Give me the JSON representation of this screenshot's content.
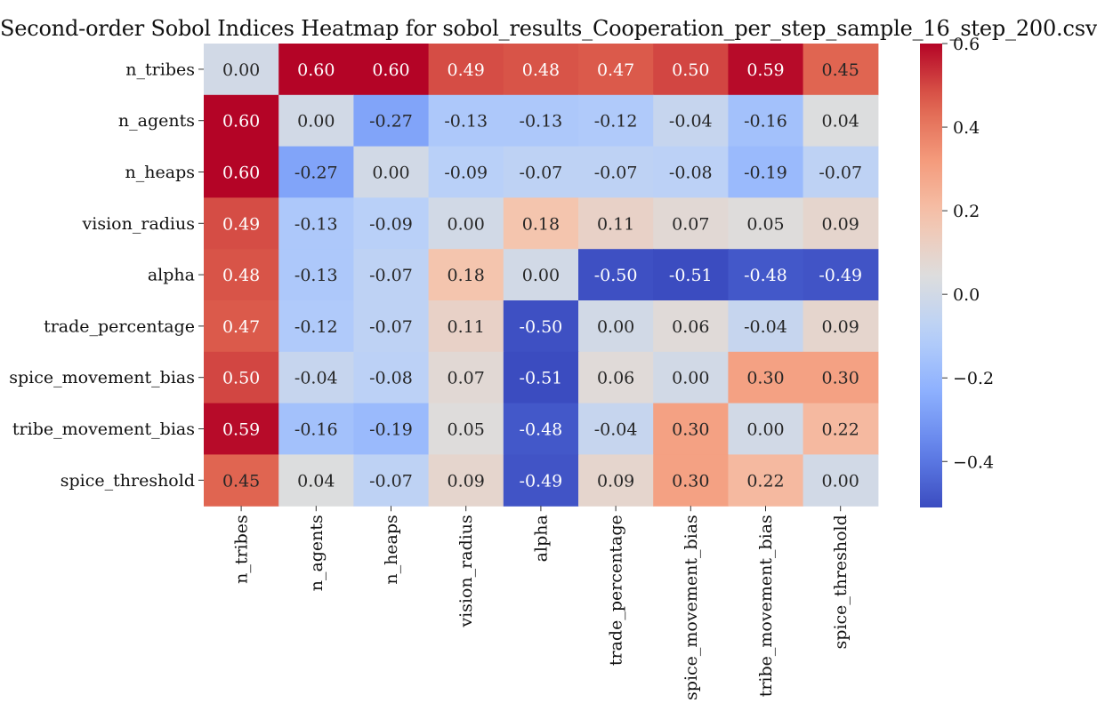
{
  "chart_data": {
    "type": "heatmap",
    "title": "Second-order Sobol Indices Heatmap for sobol_results_Cooperation_per_step_sample_16_step_200.csv",
    "row_labels": [
      "n_tribes",
      "n_agents",
      "n_heaps",
      "vision_radius",
      "alpha",
      "trade_percentage",
      "spice_movement_bias",
      "tribe_movement_bias",
      "spice_threshold"
    ],
    "col_labels": [
      "n_tribes",
      "n_agents",
      "n_heaps",
      "vision_radius",
      "alpha",
      "trade_percentage",
      "spice_movement_bias",
      "tribe_movement_bias",
      "spice_threshold"
    ],
    "values": [
      [
        0.0,
        0.6,
        0.6,
        0.49,
        0.48,
        0.47,
        0.5,
        0.59,
        0.45
      ],
      [
        0.6,
        0.0,
        -0.27,
        -0.13,
        -0.13,
        -0.12,
        -0.04,
        -0.16,
        0.04
      ],
      [
        0.6,
        -0.27,
        0.0,
        -0.09,
        -0.07,
        -0.07,
        -0.08,
        -0.19,
        -0.07
      ],
      [
        0.49,
        -0.13,
        -0.09,
        0.0,
        0.18,
        0.11,
        0.07,
        0.05,
        0.09
      ],
      [
        0.48,
        -0.13,
        -0.07,
        0.18,
        0.0,
        -0.5,
        -0.51,
        -0.48,
        -0.49
      ],
      [
        0.47,
        -0.12,
        -0.07,
        0.11,
        -0.5,
        0.0,
        0.06,
        -0.04,
        0.09
      ],
      [
        0.5,
        -0.04,
        -0.08,
        0.07,
        -0.51,
        0.06,
        0.0,
        0.3,
        0.3
      ],
      [
        0.59,
        -0.16,
        -0.19,
        0.05,
        -0.48,
        -0.04,
        0.3,
        0.0,
        0.22
      ],
      [
        0.45,
        0.04,
        -0.07,
        0.09,
        -0.49,
        0.09,
        0.3,
        0.22,
        0.0
      ]
    ],
    "colormap": "coolwarm",
    "vmin": -0.51,
    "vmax": 0.6,
    "colorbar_ticks": [
      "0.6",
      "0.4",
      "0.2",
      "0.0",
      "−0.2",
      "−0.4"
    ],
    "colorbar_tick_values": [
      0.6,
      0.4,
      0.2,
      0.0,
      -0.2,
      -0.4
    ],
    "annotation_format": "2 decimals"
  }
}
